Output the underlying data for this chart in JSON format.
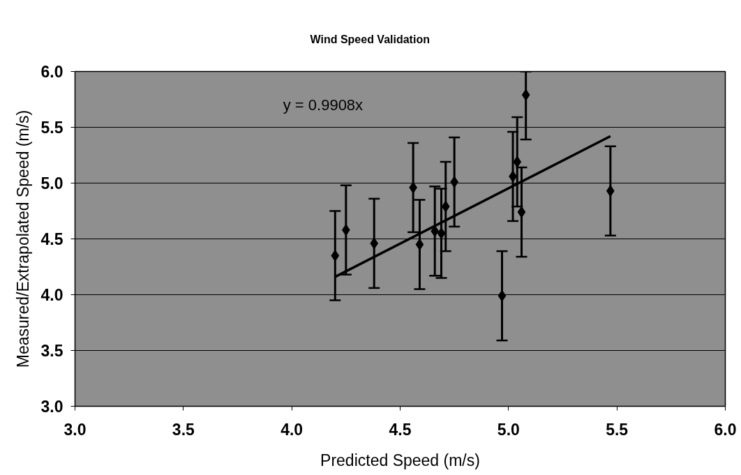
{
  "chart_data": {
    "type": "scatter",
    "title": "Wind Speed Validation",
    "xlabel": "Predicted Speed (m/s)",
    "ylabel": "Measured/Extrapolated Speed (m/s)",
    "xlim": [
      3,
      6
    ],
    "ylim": [
      3,
      6
    ],
    "xticks": [
      {
        "value": 3,
        "label": "3.0"
      },
      {
        "value": 3.5,
        "label": "3.5"
      },
      {
        "value": 4,
        "label": "4.0"
      },
      {
        "value": 4.5,
        "label": "4.5"
      },
      {
        "value": 5,
        "label": "5.0"
      },
      {
        "value": 5.5,
        "label": "5.5"
      },
      {
        "value": 6,
        "label": "6.0"
      }
    ],
    "yticks": [
      {
        "value": 3,
        "label": "3.0"
      },
      {
        "value": 3.5,
        "label": "3.5"
      },
      {
        "value": 4,
        "label": "4.0"
      },
      {
        "value": 4.5,
        "label": "4.5"
      },
      {
        "value": 5,
        "label": "5.0"
      },
      {
        "value": 5.5,
        "label": "5.5"
      },
      {
        "value": 6,
        "label": "6.0"
      }
    ],
    "grid": "y",
    "marker": "diamond",
    "annotations": [
      "y = 0.9908x"
    ],
    "series": [
      {
        "color": "#000000",
        "x": [
          4.2,
          4.25,
          4.38,
          4.56,
          4.59,
          4.66,
          4.69,
          4.71,
          4.75,
          4.97,
          5.02,
          5.04,
          5.06,
          5.08,
          5.47
        ],
        "values": [
          4.35,
          4.58,
          4.46,
          4.96,
          4.45,
          4.57,
          4.55,
          4.79,
          5.01,
          3.99,
          5.06,
          5.19,
          4.74,
          5.79,
          4.93
        ],
        "errors": [
          0.4,
          0.4,
          0.4,
          0.4,
          0.4,
          0.4,
          0.4,
          0.4,
          0.4,
          0.4,
          0.4,
          0.4,
          0.4,
          [
            5.39,
            6.0
          ],
          0.4
        ]
      },
      {
        "type": "line",
        "color": "#000000",
        "marker": "none",
        "x": [
          4.2,
          5.47
        ],
        "values": [
          4.16,
          5.42
        ]
      }
    ]
  }
}
